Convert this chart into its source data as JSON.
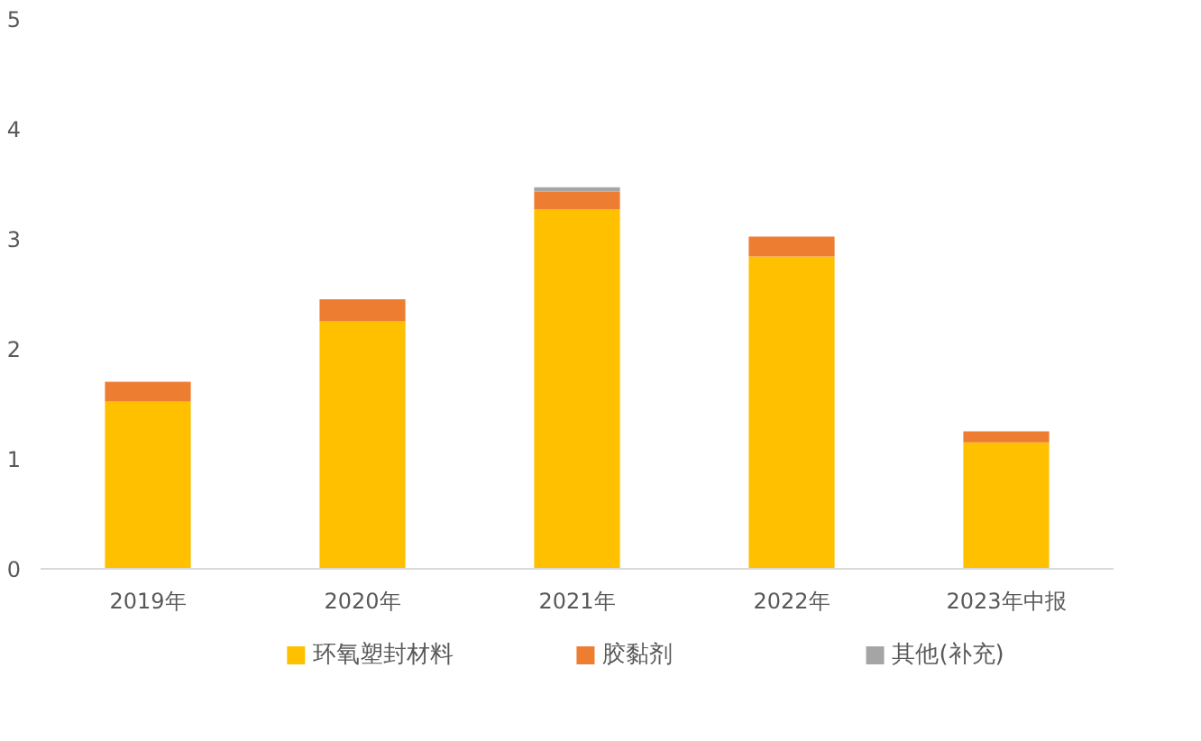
{
  "chart_data": {
    "type": "bar",
    "stacked": true,
    "categories": [
      "2019年",
      "2020年",
      "2021年",
      "2022年",
      "2023年中报"
    ],
    "series": [
      {
        "name": "环氧塑封材料",
        "color": "#ffc000",
        "values": [
          1.52,
          2.25,
          3.27,
          2.84,
          1.15
        ]
      },
      {
        "name": "胶黏剂",
        "color": "#ed7d31",
        "values": [
          0.18,
          0.2,
          0.16,
          0.18,
          0.1
        ]
      },
      {
        "name": "其他(补充)",
        "color": "#a5a5a5",
        "values": [
          0,
          0,
          0.04,
          0,
          0
        ]
      }
    ],
    "ylim": [
      0,
      5
    ],
    "yticks": [
      0,
      1,
      2,
      3,
      4,
      5
    ],
    "grid": false,
    "legend": "bottom"
  }
}
